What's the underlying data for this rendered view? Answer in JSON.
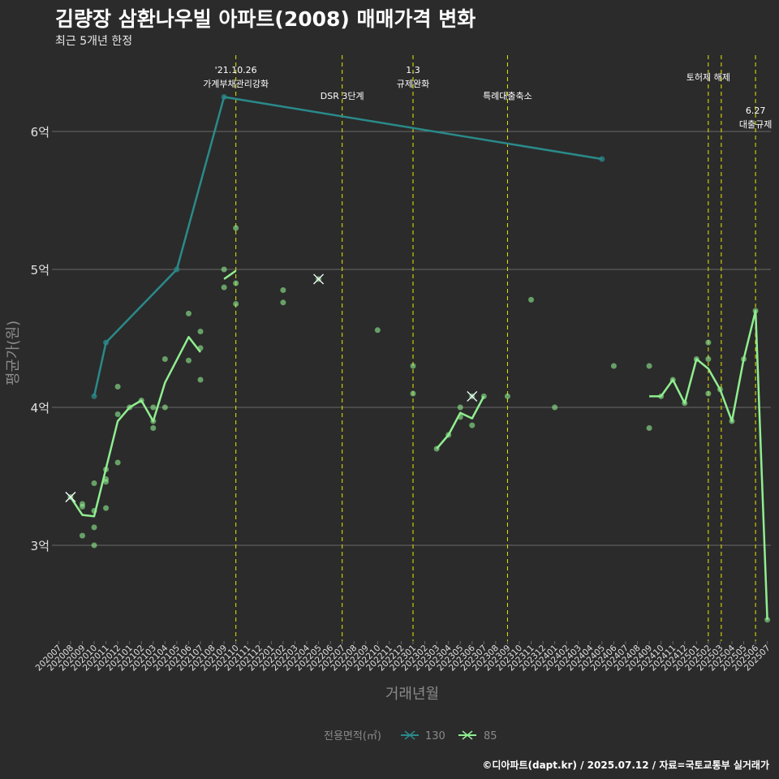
{
  "title": "김량장 삼환나우빌 아파트(2008) 매매가격 변화",
  "subtitle": "최근 5개년 한정",
  "caption": "©디아파트(dapt.kr) / 2025.07.12 / 자료=국토교통부 실거래가",
  "colors": {
    "background": "#2b2b2b",
    "grid": "#6a6a6a",
    "event_line": "#e8e800",
    "series_130": "#2a8a8a",
    "series_85": "#90ee90",
    "axis_text": "#e0e0e0",
    "axis_title": "#8a8a8a"
  },
  "chart_data": {
    "type": "line",
    "title": "김량장 삼환나우빌 아파트(2008) 매매가격 변화",
    "xlabel": "거래년월",
    "ylabel": "평균가(원)",
    "legend_title": "전용면적(㎡)",
    "legend_position": "bottom",
    "grid": true,
    "categories": [
      "202007",
      "202008",
      "202009",
      "202010",
      "202011",
      "202012",
      "202101",
      "202102",
      "202103",
      "202104",
      "202105",
      "202106",
      "202107",
      "202108",
      "202109",
      "202110",
      "202111",
      "202112",
      "202201",
      "202202",
      "202203",
      "202204",
      "202205",
      "202206",
      "202207",
      "202208",
      "202209",
      "202210",
      "202211",
      "202212",
      "202301",
      "202302",
      "202303",
      "202304",
      "202305",
      "202306",
      "202307",
      "202308",
      "202309",
      "202310",
      "202311",
      "202312",
      "202401",
      "202402",
      "202403",
      "202404",
      "202405",
      "202406",
      "202407",
      "202408",
      "202409",
      "202410",
      "202411",
      "202412",
      "202501",
      "202502",
      "202503",
      "202504",
      "202505",
      "202506",
      "202507"
    ],
    "yticks": [
      {
        "value": 3.0,
        "label": "3억"
      },
      {
        "value": 4.0,
        "label": "4억"
      },
      {
        "value": 5.0,
        "label": "5억"
      },
      {
        "value": 6.0,
        "label": "6억"
      }
    ],
    "ylim": [
      2.3,
      6.55
    ],
    "series": [
      {
        "name": "130",
        "color": "#2a8a8a",
        "line": [
          {
            "x": "202010",
            "y": 4.08
          },
          {
            "x": "202011",
            "y": 4.47
          },
          {
            "x": "202105",
            "y": 5.0
          },
          {
            "x": "202109",
            "y": 6.25
          },
          {
            "x": "202405",
            "y": 5.8
          }
        ],
        "points": [
          {
            "x": "202010",
            "y": 4.08
          },
          {
            "x": "202011",
            "y": 4.47
          },
          {
            "x": "202105",
            "y": 5.0
          },
          {
            "x": "202109",
            "y": 6.25
          },
          {
            "x": "202405",
            "y": 5.8
          }
        ]
      },
      {
        "name": "85",
        "color": "#90ee90",
        "line_segments": [
          [
            {
              "x": "202008",
              "y": 3.35
            },
            {
              "x": "202009",
              "y": 3.22
            },
            {
              "x": "202010",
              "y": 3.21
            },
            {
              "x": "202012",
              "y": 3.9
            },
            {
              "x": "202101",
              "y": 4.0
            },
            {
              "x": "202102",
              "y": 4.05
            },
            {
              "x": "202103",
              "y": 3.9
            },
            {
              "x": "202104",
              "y": 4.18
            },
            {
              "x": "202106",
              "y": 4.51
            },
            {
              "x": "202107",
              "y": 4.4
            }
          ],
          [
            {
              "x": "202109",
              "y": 4.93
            },
            {
              "x": "202110",
              "y": 4.99
            }
          ],
          [
            {
              "x": "202303",
              "y": 3.7
            },
            {
              "x": "202304",
              "y": 3.8
            },
            {
              "x": "202305",
              "y": 3.96
            },
            {
              "x": "202306",
              "y": 3.92
            },
            {
              "x": "202307",
              "y": 4.08
            }
          ],
          [
            {
              "x": "202409",
              "y": 4.08
            },
            {
              "x": "202410",
              "y": 4.08
            },
            {
              "x": "202411",
              "y": 4.2
            },
            {
              "x": "202412",
              "y": 4.03
            },
            {
              "x": "202501",
              "y": 4.35
            },
            {
              "x": "202502",
              "y": 4.28
            },
            {
              "x": "202503",
              "y": 4.13
            },
            {
              "x": "202504",
              "y": 3.9
            },
            {
              "x": "202505",
              "y": 4.35
            },
            {
              "x": "202506",
              "y": 4.7
            },
            {
              "x": "202507",
              "y": 2.46
            }
          ]
        ],
        "points": [
          {
            "x": "202008",
            "y": 3.35
          },
          {
            "x": "202009",
            "y": 3.3
          },
          {
            "x": "202009",
            "y": 3.28
          },
          {
            "x": "202009",
            "y": 3.07
          },
          {
            "x": "202010",
            "y": 3.45
          },
          {
            "x": "202010",
            "y": 3.25
          },
          {
            "x": "202010",
            "y": 3.13
          },
          {
            "x": "202010",
            "y": 3.0
          },
          {
            "x": "202011",
            "y": 3.55
          },
          {
            "x": "202011",
            "y": 3.48
          },
          {
            "x": "202011",
            "y": 3.46
          },
          {
            "x": "202011",
            "y": 3.27
          },
          {
            "x": "202012",
            "y": 4.15
          },
          {
            "x": "202012",
            "y": 3.95
          },
          {
            "x": "202012",
            "y": 3.6
          },
          {
            "x": "202101",
            "y": 4.0
          },
          {
            "x": "202102",
            "y": 4.05
          },
          {
            "x": "202103",
            "y": 4.0
          },
          {
            "x": "202103",
            "y": 3.9
          },
          {
            "x": "202103",
            "y": 3.85
          },
          {
            "x": "202104",
            "y": 4.35
          },
          {
            "x": "202104",
            "y": 4.0
          },
          {
            "x": "202106",
            "y": 4.68
          },
          {
            "x": "202106",
            "y": 4.34
          },
          {
            "x": "202107",
            "y": 4.55
          },
          {
            "x": "202107",
            "y": 4.43
          },
          {
            "x": "202107",
            "y": 4.2
          },
          {
            "x": "202109",
            "y": 5.0
          },
          {
            "x": "202109",
            "y": 4.87
          },
          {
            "x": "202110",
            "y": 5.3
          },
          {
            "x": "202110",
            "y": 4.9
          },
          {
            "x": "202110",
            "y": 4.75
          },
          {
            "x": "202202",
            "y": 4.85
          },
          {
            "x": "202202",
            "y": 4.76
          },
          {
            "x": "202205",
            "y": 4.93
          },
          {
            "x": "202210",
            "y": 4.56
          },
          {
            "x": "202301",
            "y": 4.3
          },
          {
            "x": "202301",
            "y": 4.1
          },
          {
            "x": "202303",
            "y": 3.7
          },
          {
            "x": "202304",
            "y": 3.8
          },
          {
            "x": "202305",
            "y": 4.0
          },
          {
            "x": "202305",
            "y": 3.93
          },
          {
            "x": "202306",
            "y": 4.08
          },
          {
            "x": "202306",
            "y": 3.87
          },
          {
            "x": "202307",
            "y": 4.08
          },
          {
            "x": "202309",
            "y": 4.08
          },
          {
            "x": "202311",
            "y": 4.78
          },
          {
            "x": "202401",
            "y": 4.0
          },
          {
            "x": "202406",
            "y": 4.3
          },
          {
            "x": "202409",
            "y": 4.3
          },
          {
            "x": "202409",
            "y": 3.85
          },
          {
            "x": "202410",
            "y": 4.08
          },
          {
            "x": "202411",
            "y": 4.2
          },
          {
            "x": "202412",
            "y": 4.03
          },
          {
            "x": "202501",
            "y": 4.35
          },
          {
            "x": "202502",
            "y": 4.47
          },
          {
            "x": "202502",
            "y": 4.35
          },
          {
            "x": "202502",
            "y": 4.1
          },
          {
            "x": "202503",
            "y": 4.13
          },
          {
            "x": "202504",
            "y": 3.9
          },
          {
            "x": "202505",
            "y": 4.35
          },
          {
            "x": "202506",
            "y": 4.7
          },
          {
            "x": "202507",
            "y": 2.46
          }
        ]
      }
    ],
    "highlights": [
      {
        "series": "130",
        "x": "202008",
        "y": 3.35
      },
      {
        "series": "85",
        "x": "202008",
        "y": 3.35
      },
      {
        "series": "130",
        "x": "202205",
        "y": 4.93
      },
      {
        "series": "85",
        "x": "202205",
        "y": 4.93
      },
      {
        "series": "130",
        "x": "202306",
        "y": 4.08
      },
      {
        "series": "85",
        "x": "202306",
        "y": 4.08
      }
    ],
    "events": [
      {
        "x": 15.0,
        "lines": [
          "'21.10.26",
          "가계부채관리강화"
        ],
        "level": 0
      },
      {
        "x": 24.0,
        "lines": [
          "DSR 3단계"
        ],
        "level": 1
      },
      {
        "x": 30.0,
        "lines": [
          "1.3",
          "규제완화"
        ],
        "level": 0
      },
      {
        "x": 38.0,
        "lines": [
          "특례대출축소"
        ],
        "level": 1
      },
      {
        "x": 55.0,
        "lines": [
          "토허제 해제"
        ],
        "level": 2
      },
      {
        "x": 56.1,
        "lines": [],
        "level": 2
      },
      {
        "x": 59.0,
        "lines": [
          "6.27",
          "대출규제"
        ],
        "level": 3
      }
    ]
  }
}
